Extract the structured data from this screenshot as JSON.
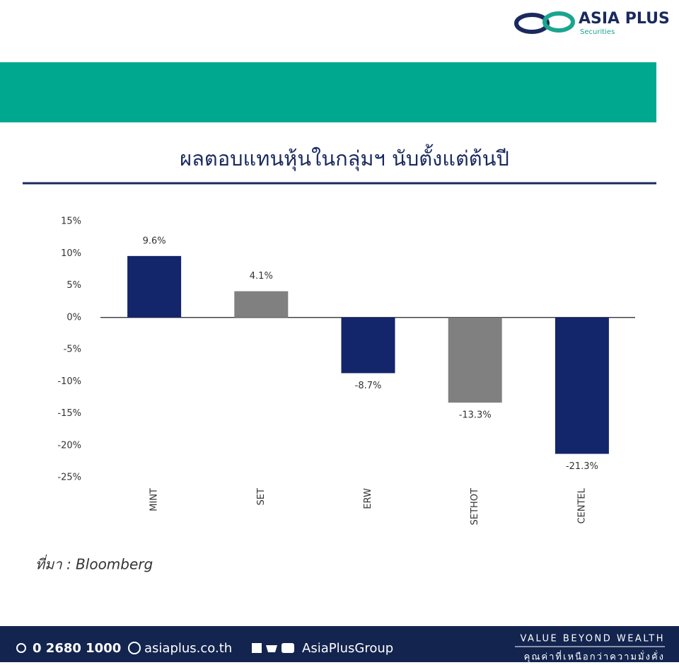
{
  "brand": {
    "name": "ASIA PLUS",
    "subname": "Securities"
  },
  "chart_data": {
    "type": "bar",
    "title": "ผลตอบแทนหุ้นในกลุ่มฯ นับตั้งแต่ต้นปี",
    "categories": [
      "MINT",
      "SET",
      "ERW",
      "SETHOT",
      "CENTEL"
    ],
    "values": [
      9.6,
      4.1,
      -8.7,
      -13.3,
      -21.3
    ],
    "value_labels": [
      "9.6%",
      "4.1%",
      "-8.7%",
      "-13.3%",
      "-21.3%"
    ],
    "colors": [
      "#13256b",
      "#808080",
      "#13256b",
      "#808080",
      "#13256b"
    ],
    "ylim": [
      -25,
      15
    ],
    "yticks": [
      {
        "value": 15,
        "label": "15%"
      },
      {
        "value": 10,
        "label": "10%"
      },
      {
        "value": 5,
        "label": "5%"
      },
      {
        "value": 0,
        "label": "0%"
      },
      {
        "value": -5,
        "label": "-5%"
      },
      {
        "value": -10,
        "label": "-10%"
      },
      {
        "value": -15,
        "label": "-15%"
      },
      {
        "value": -20,
        "label": "-20%"
      },
      {
        "value": -25,
        "label": "-25%"
      }
    ],
    "source": "ที่มา : Bloomberg"
  },
  "footer": {
    "phone": "0 2680 1000",
    "website": "asiaplus.co.th",
    "social": "AsiaPlusGroup",
    "slogan": "VALUE BEYOND WEALTH",
    "slogan_thai": "คุณค่าที่เหนือกว่าความมั่งคั่ง"
  }
}
